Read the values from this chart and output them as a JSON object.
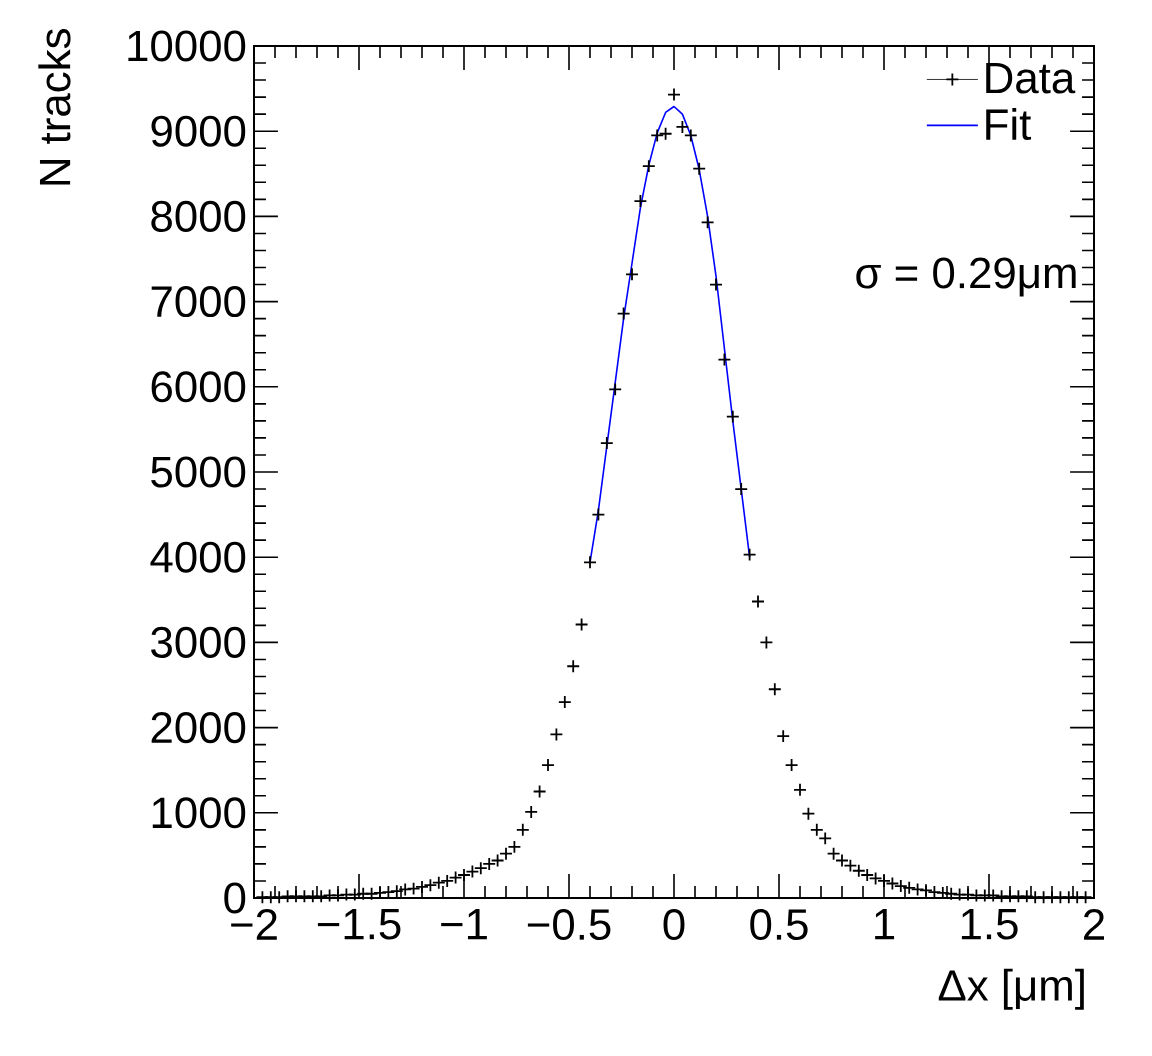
{
  "chart_data": {
    "type": "scatter",
    "xlabel": "Δx [μm]",
    "ylabel": "N tracks",
    "annotations": [
      "σ = 0.29μm"
    ],
    "xlim": [
      -2,
      2
    ],
    "ylim": [
      0,
      10000
    ],
    "xticks": [
      {
        "value": -2,
        "label": "−2"
      },
      {
        "value": -1.5,
        "label": "−1.5"
      },
      {
        "value": -1,
        "label": "−1"
      },
      {
        "value": -0.5,
        "label": "−0.5"
      },
      0,
      0.5,
      1,
      1.5,
      2
    ],
    "yticks": [
      0,
      1000,
      2000,
      3000,
      4000,
      5000,
      6000,
      7000,
      8000,
      9000,
      10000
    ],
    "legend": "top right",
    "grid": false,
    "series": [
      {
        "name": "Data",
        "type": "scatter",
        "marker": "cross",
        "color": "#000000",
        "x": [
          -1.96,
          -1.92,
          -1.88,
          -1.84,
          -1.8,
          -1.76,
          -1.72,
          -1.68,
          -1.64,
          -1.6,
          -1.56,
          -1.52,
          -1.48,
          -1.44,
          -1.4,
          -1.36,
          -1.32,
          -1.28,
          -1.24,
          -1.2,
          -1.16,
          -1.12,
          -1.08,
          -1.04,
          -1.0,
          -0.96,
          -0.92,
          -0.88,
          -0.84,
          -0.8,
          -0.76,
          -0.72,
          -0.68,
          -0.64,
          -0.6,
          -0.56,
          -0.52,
          -0.48,
          -0.44,
          -0.4,
          -0.36,
          -0.32,
          -0.28,
          -0.24,
          -0.2,
          -0.16,
          -0.12,
          -0.08,
          -0.04,
          0,
          0.04,
          0.08,
          0.12,
          0.16,
          0.2,
          0.24,
          0.28,
          0.32,
          0.36,
          0.4,
          0.44,
          0.48,
          0.52,
          0.56,
          0.6,
          0.64,
          0.68,
          0.72,
          0.76,
          0.8,
          0.84,
          0.88,
          0.92,
          0.96,
          1.0,
          1.04,
          1.08,
          1.12,
          1.16,
          1.2,
          1.24,
          1.28,
          1.32,
          1.36,
          1.4,
          1.44,
          1.48,
          1.52,
          1.56,
          1.6,
          1.64,
          1.68,
          1.72,
          1.76,
          1.8,
          1.84,
          1.88,
          1.92,
          1.96
        ],
        "values": [
          10,
          10,
          10,
          20,
          20,
          20,
          20,
          20,
          30,
          30,
          40,
          40,
          50,
          50,
          60,
          70,
          80,
          100,
          110,
          130,
          150,
          180,
          200,
          240,
          270,
          310,
          350,
          400,
          440,
          520,
          600,
          800,
          1010,
          1250,
          1560,
          1920,
          2300,
          2720,
          3210,
          3940,
          4500,
          5340,
          5970,
          6860,
          7320,
          8180,
          8590,
          8950,
          8970,
          9430,
          9050,
          8950,
          8560,
          7930,
          7200,
          6320,
          5650,
          4800,
          4030,
          3480,
          3000,
          2450,
          1900,
          1560,
          1270,
          990,
          800,
          700,
          520,
          440,
          380,
          320,
          270,
          230,
          200,
          170,
          140,
          120,
          100,
          90,
          70,
          60,
          50,
          40,
          40,
          30,
          30,
          30,
          20,
          20,
          20,
          20,
          10,
          10,
          10,
          10,
          10,
          10,
          10
        ]
      },
      {
        "name": "Fit",
        "type": "line",
        "marker": "none",
        "color": "#0000ff",
        "x": [
          -0.4,
          -0.36,
          -0.32,
          -0.28,
          -0.24,
          -0.2,
          -0.16,
          -0.12,
          -0.08,
          -0.04,
          0,
          0.04,
          0.08,
          0.12,
          0.16,
          0.2,
          0.24,
          0.28,
          0.32,
          0.36
        ],
        "values": [
          3940,
          4550,
          5300,
          6050,
          6800,
          7450,
          8100,
          8600,
          8980,
          9220,
          9290,
          9200,
          8950,
          8550,
          8000,
          7300,
          6450,
          5600,
          4800,
          4000
        ]
      }
    ]
  }
}
